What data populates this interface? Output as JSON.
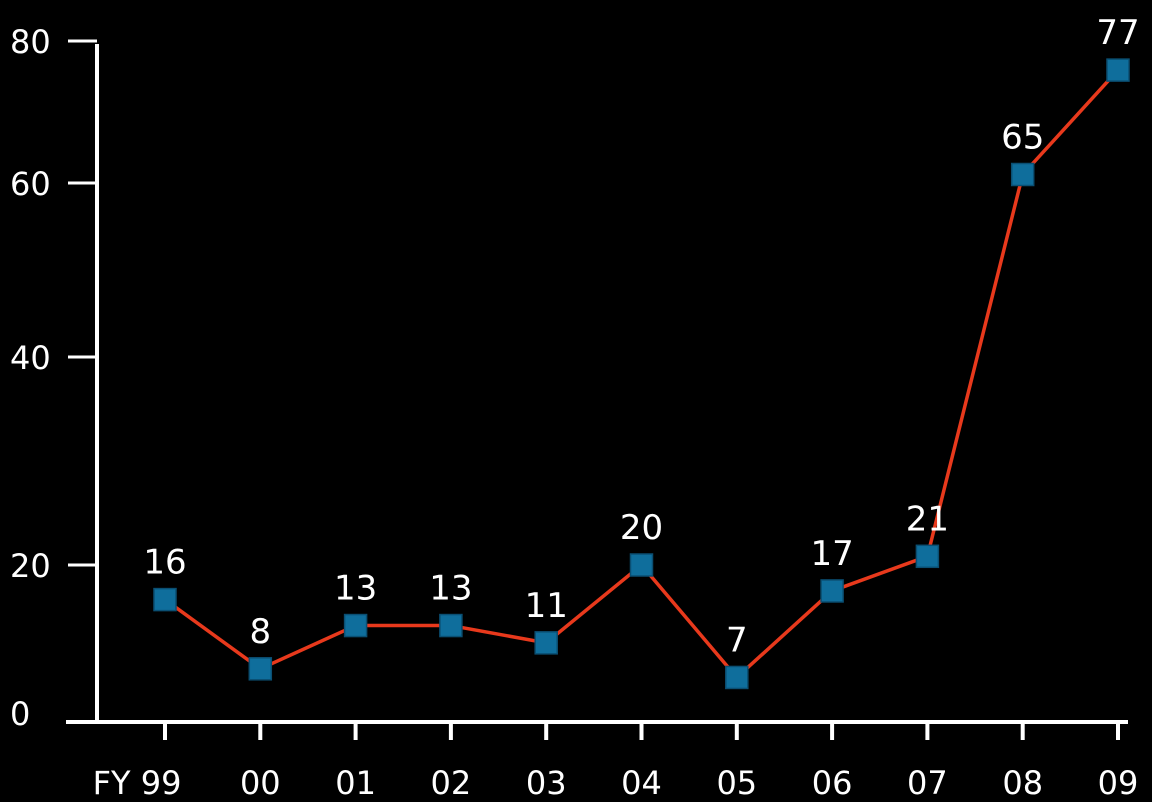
{
  "chart_data": {
    "type": "line",
    "title": "",
    "xlabel": "",
    "ylabel": "",
    "categories": [
      "FY 99",
      "00",
      "01",
      "02",
      "03",
      "04",
      "05",
      "06",
      "07",
      "08",
      "09"
    ],
    "series": [
      {
        "values": [
          16,
          8,
          13,
          13,
          11,
          20,
          7,
          17,
          21,
          65,
          77
        ]
      }
    ],
    "data_labels": [
      "16",
      "8",
      "13",
      "13",
      "11",
      "20",
      "7",
      "17",
      "21",
      "65",
      "77"
    ],
    "y_ticks": [
      0,
      20,
      40,
      60,
      80
    ],
    "y_tick_labels": [
      "0",
      "20",
      "40",
      "60",
      "80"
    ],
    "ylim": [
      0,
      80
    ],
    "grid": false,
    "legend": "none",
    "colors": {
      "background": "#000000",
      "axis": "#ffffff",
      "line": "#e8391c",
      "marker": "#0f6e9c",
      "marker_stroke": "#0a4f73",
      "text": "#ffffff"
    }
  }
}
